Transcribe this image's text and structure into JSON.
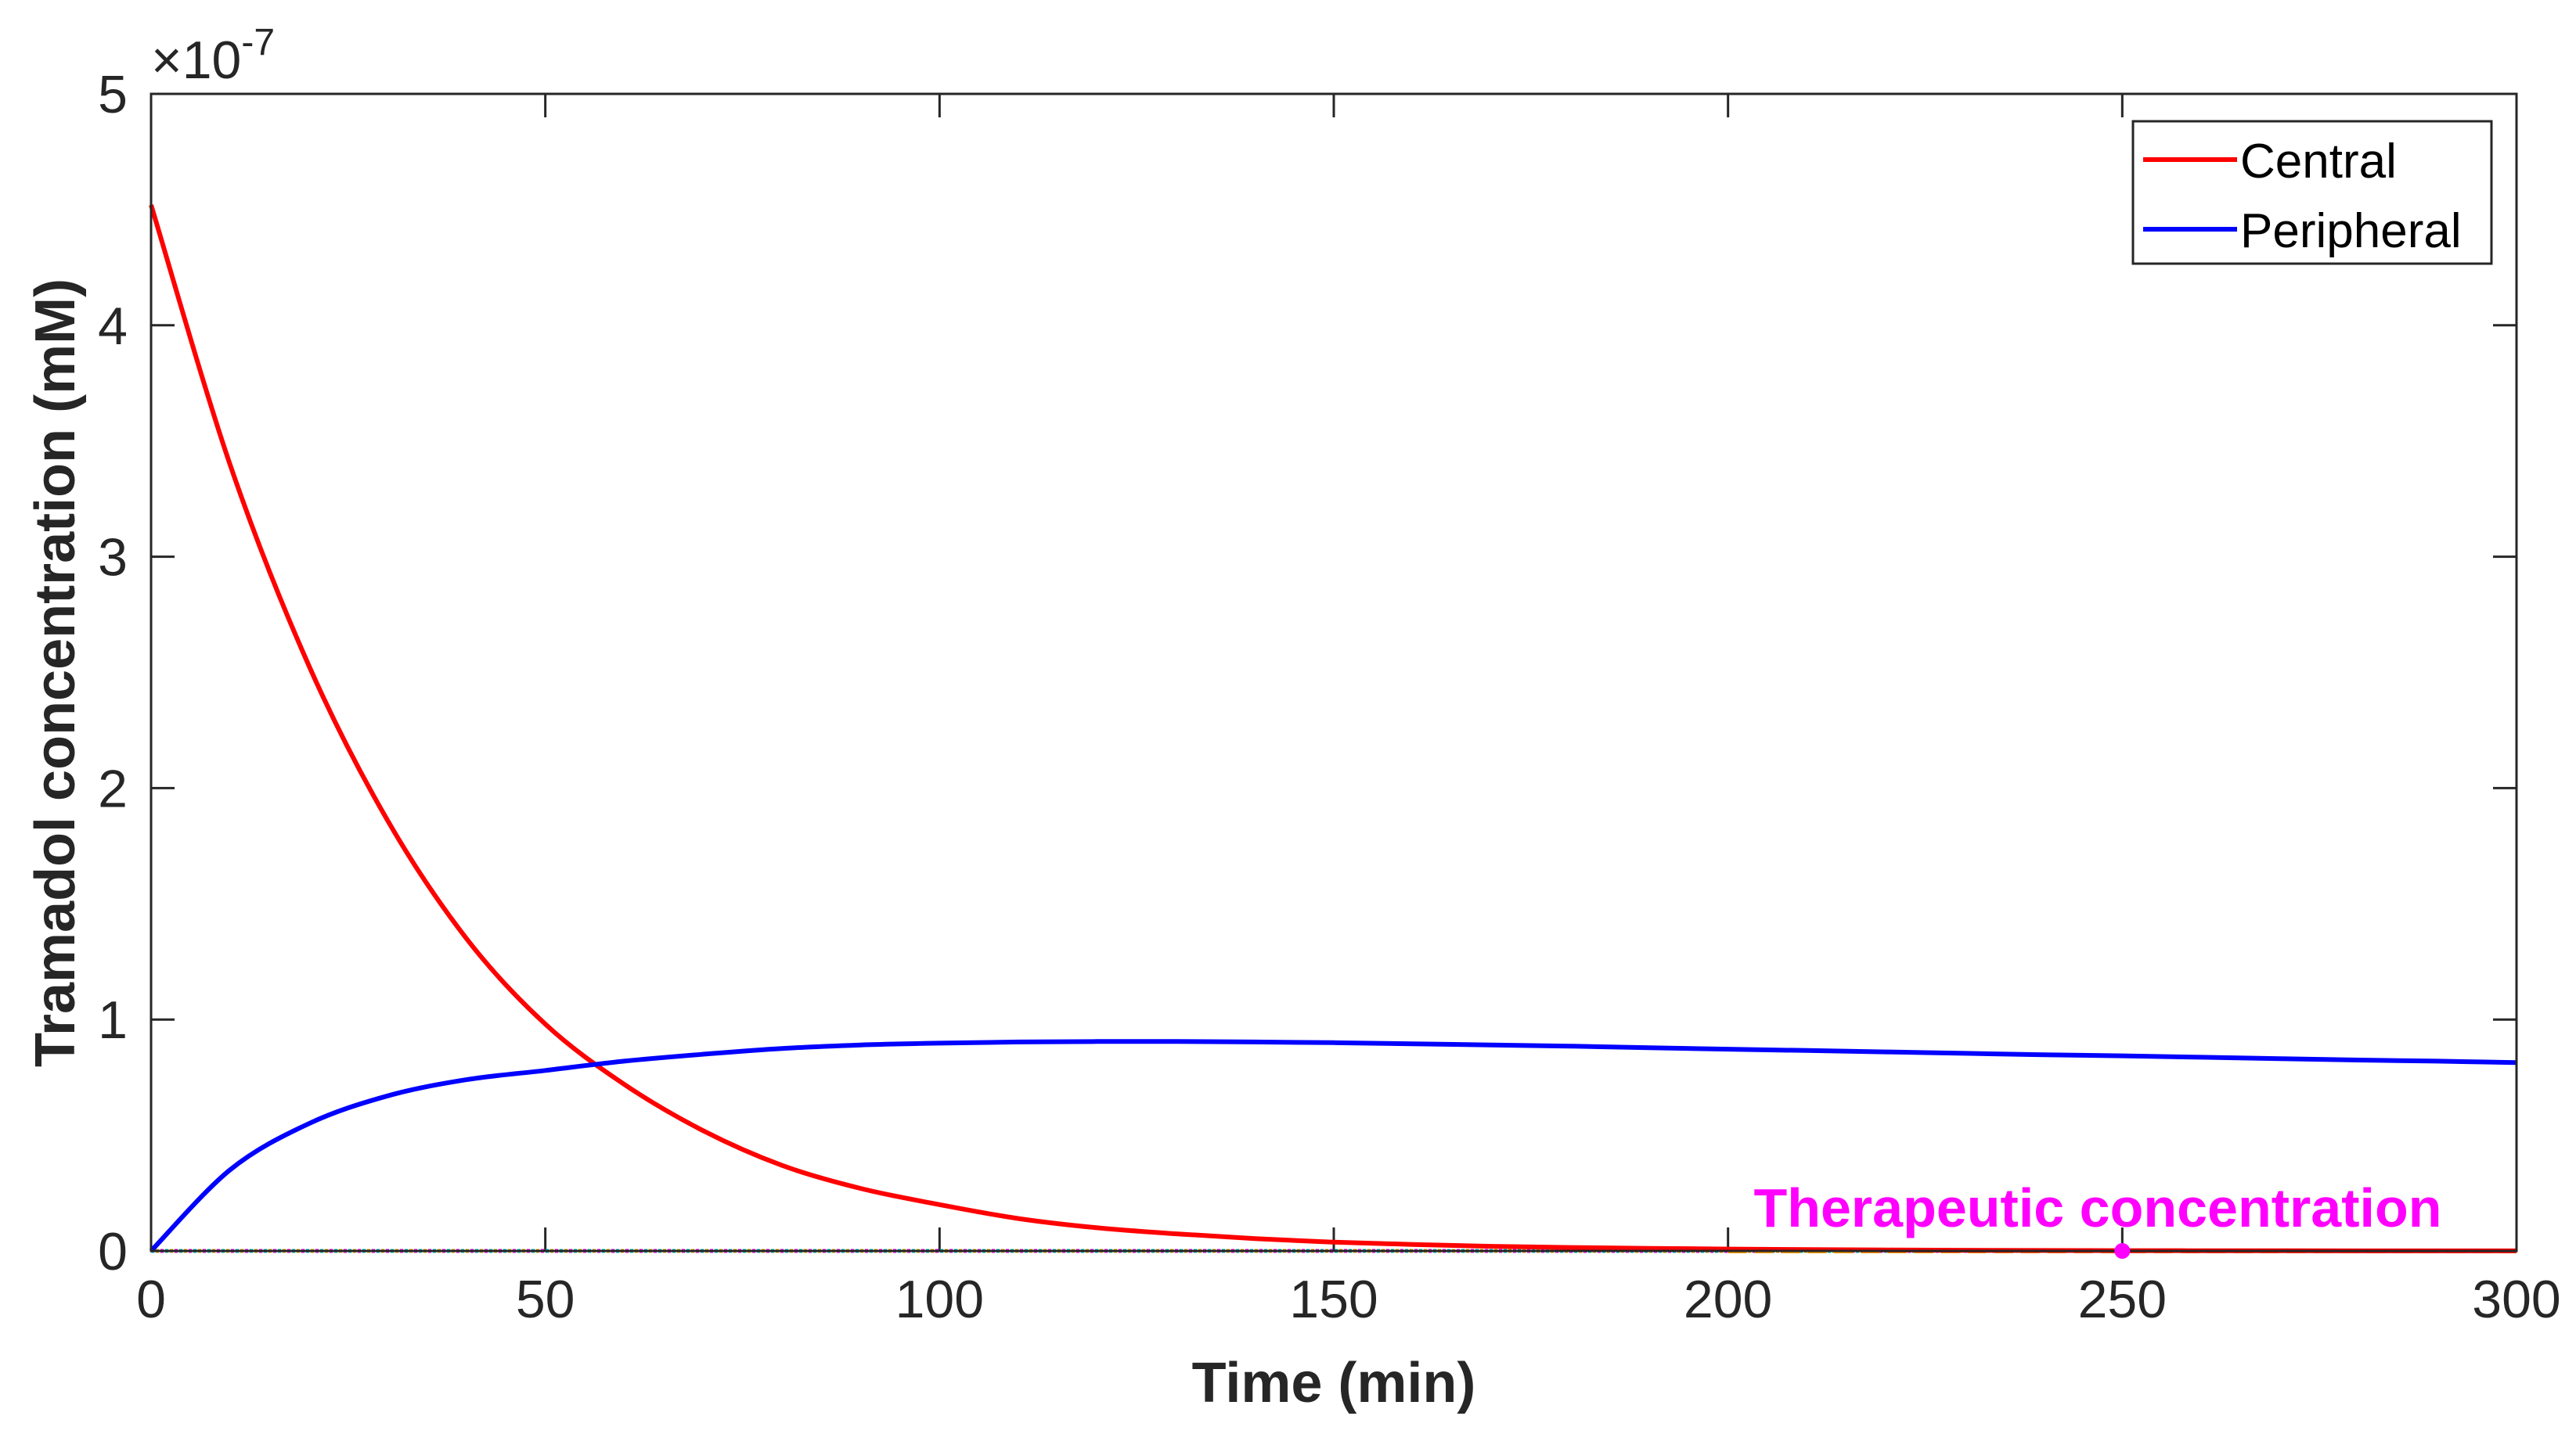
{
  "chart_data": {
    "type": "line",
    "xlabel": "Time (min)",
    "ylabel": "Tramadol concentration (mM)",
    "exponent_label": "×10",
    "exponent_power": "-7",
    "xlim": [
      0,
      300
    ],
    "ylim": [
      0,
      5
    ],
    "x_ticks": [
      "0",
      "50",
      "100",
      "150",
      "200",
      "250",
      "300"
    ],
    "y_ticks": [
      "0",
      "1",
      "2",
      "3",
      "4",
      "5"
    ],
    "grid": false,
    "legend_position": "top-right",
    "x": [
      0,
      10,
      20,
      30,
      40,
      50,
      60,
      70,
      80,
      90,
      100,
      110,
      120,
      130,
      140,
      150,
      160,
      170,
      180,
      190,
      200,
      210,
      220,
      230,
      240,
      250,
      260,
      270,
      280,
      290,
      300
    ],
    "series": [
      {
        "name": "Central",
        "color": "#ff0000",
        "values": [
          4.52,
          3.4,
          2.53,
          1.86,
          1.35,
          0.98,
          0.72,
          0.52,
          0.37,
          0.27,
          0.2,
          0.14,
          0.1,
          0.074,
          0.053,
          0.038,
          0.028,
          0.02,
          0.015,
          0.011,
          0.008,
          0.006,
          0.004,
          0.003,
          0.002,
          0.0015,
          0.001,
          0.001,
          0.0005,
          0.0005,
          0.0003
        ]
      },
      {
        "name": "Peripheral",
        "color": "#0000ff",
        "values": [
          0.0,
          0.35,
          0.55,
          0.67,
          0.74,
          0.78,
          0.82,
          0.85,
          0.875,
          0.89,
          0.898,
          0.903,
          0.905,
          0.905,
          0.903,
          0.9,
          0.895,
          0.89,
          0.885,
          0.878,
          0.872,
          0.866,
          0.86,
          0.854,
          0.848,
          0.843,
          0.837,
          0.831,
          0.825,
          0.82,
          0.814
        ]
      }
    ],
    "annotation": {
      "text": "Therapeutic concentration",
      "color": "#ff00ff",
      "marker_x": 250,
      "marker_y": 0
    },
    "baseline_color": "#ff9900"
  }
}
